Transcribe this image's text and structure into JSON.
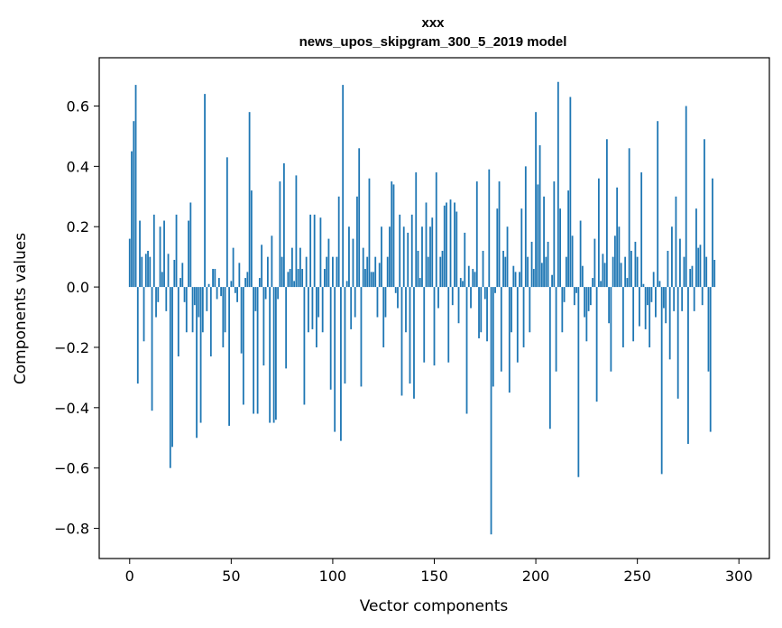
{
  "chart_data": {
    "type": "bar",
    "title": "xxx",
    "subtitle": "news_upos_skipgram_300_5_2019 model",
    "xlabel": "Vector components",
    "ylabel": "Components values",
    "xlim": [
      -15,
      315
    ],
    "ylim": [
      -0.9,
      0.76
    ],
    "x_ticks": [
      0,
      50,
      100,
      150,
      200,
      250,
      300
    ],
    "x_tick_labels": [
      "0",
      "50",
      "100",
      "150",
      "200",
      "250",
      "300"
    ],
    "y_ticks": [
      -0.8,
      -0.6,
      -0.4,
      -0.2,
      0.0,
      0.2,
      0.4,
      0.6
    ],
    "y_tick_labels": [
      "−0.8",
      "−0.6",
      "−0.4",
      "−0.2",
      "0.0",
      "0.2",
      "0.4",
      "0.6"
    ],
    "bar_color": "#1f77b4",
    "grid": false,
    "values": [
      0.16,
      0.45,
      0.55,
      0.67,
      -0.32,
      0.22,
      0.1,
      -0.18,
      0.11,
      0.12,
      0.1,
      -0.41,
      0.24,
      -0.1,
      -0.05,
      0.2,
      0.05,
      0.22,
      -0.08,
      0.11,
      -0.6,
      -0.53,
      0.09,
      0.24,
      -0.23,
      0.03,
      0.08,
      -0.05,
      -0.15,
      0.22,
      0.28,
      -0.15,
      -0.06,
      -0.5,
      -0.1,
      -0.45,
      -0.15,
      0.64,
      -0.08,
      0.01,
      -0.23,
      0.06,
      0.06,
      -0.04,
      0.03,
      -0.03,
      -0.2,
      -0.15,
      0.43,
      -0.46,
      0.02,
      0.13,
      -0.02,
      -0.05,
      0.08,
      -0.22,
      -0.39,
      0.03,
      0.05,
      0.58,
      0.32,
      -0.42,
      -0.08,
      -0.42,
      0.03,
      0.14,
      -0.26,
      -0.04,
      0.1,
      -0.45,
      0.17,
      -0.45,
      -0.44,
      -0.04,
      0.35,
      0.1,
      0.41,
      -0.27,
      0.05,
      0.06,
      0.13,
      0.02,
      0.37,
      0.06,
      0.13,
      0.06,
      -0.39,
      0.1,
      -0.15,
      0.24,
      -0.14,
      0.24,
      -0.2,
      -0.1,
      0.23,
      -0.15,
      0.06,
      0.1,
      0.16,
      -0.34,
      0.1,
      -0.48,
      0.1,
      0.3,
      -0.51,
      0.67,
      -0.32,
      0.02,
      0.2,
      -0.14,
      0.16,
      -0.1,
      0.3,
      0.46,
      -0.33,
      0.13,
      0.06,
      0.1,
      0.36,
      0.05,
      0.05,
      0.1,
      -0.1,
      0.08,
      0.2,
      -0.2,
      -0.1,
      0.1,
      0.2,
      0.35,
      0.34,
      -0.02,
      -0.07,
      0.24,
      -0.36,
      0.2,
      -0.15,
      0.18,
      -0.32,
      0.24,
      -0.37,
      0.38,
      0.12,
      0.03,
      0.2,
      -0.25,
      0.28,
      0.1,
      0.2,
      0.23,
      -0.26,
      0.38,
      -0.07,
      0.1,
      0.12,
      0.27,
      0.28,
      -0.25,
      0.29,
      -0.06,
      0.28,
      0.25,
      -0.12,
      0.03,
      0.02,
      0.18,
      -0.42,
      0.07,
      -0.07,
      0.06,
      0.05,
      0.35,
      -0.17,
      -0.15,
      0.12,
      -0.04,
      -0.18,
      0.39,
      -0.82,
      -0.33,
      -0.02,
      0.26,
      0.35,
      -0.28,
      0.12,
      0.1,
      0.2,
      -0.35,
      -0.15,
      0.07,
      0.05,
      -0.25,
      0.05,
      0.26,
      -0.2,
      0.4,
      0.1,
      -0.15,
      0.15,
      0.06,
      0.58,
      0.34,
      0.47,
      0.08,
      0.3,
      0.1,
      0.15,
      -0.47,
      0.04,
      0.35,
      -0.28,
      0.68,
      0.26,
      -0.15,
      -0.05,
      0.1,
      0.32,
      0.63,
      0.17,
      -0.06,
      -0.02,
      -0.63,
      0.22,
      0.07,
      -0.1,
      -0.18,
      -0.08,
      -0.06,
      0.03,
      0.16,
      -0.38,
      0.36,
      0.02,
      0.11,
      0.08,
      0.49,
      -0.12,
      -0.28,
      0.1,
      0.17,
      0.33,
      0.2,
      0.08,
      -0.2,
      0.1,
      0.03,
      0.46,
      0.12,
      -0.18,
      0.15,
      0.1,
      -0.13,
      0.38,
      0.01,
      -0.14,
      -0.06,
      -0.2,
      -0.05,
      0.05,
      -0.1,
      0.55,
      0.02,
      -0.62,
      -0.07,
      -0.12,
      0.12,
      -0.24,
      0.2,
      -0.08,
      0.3,
      -0.37,
      0.16,
      -0.08,
      0.1,
      0.6,
      -0.52,
      0.06,
      0.07,
      -0.08,
      0.26,
      0.13,
      0.14,
      -0.06,
      0.49,
      0.1,
      -0.28,
      -0.48,
      0.36,
      0.09
    ]
  }
}
